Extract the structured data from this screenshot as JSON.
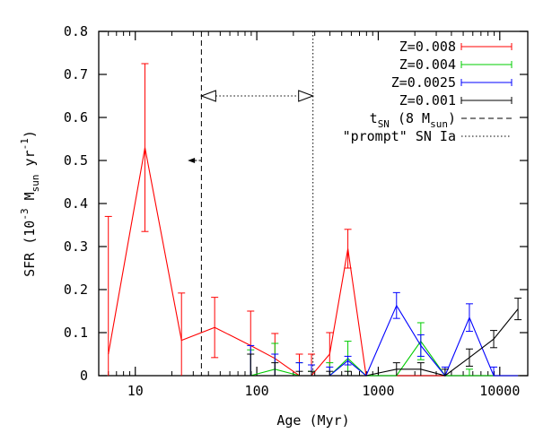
{
  "chart_data": {
    "type": "line",
    "xlabel": "Age (Myr)",
    "ylabel": "SFR (10^-3 M_sun yr^-1)",
    "xscale": "log",
    "xlim": [
      5,
      17000
    ],
    "ylim": [
      0,
      0.8
    ],
    "x_ticks": [
      10,
      100,
      1000,
      10000
    ],
    "y_ticks": [
      0,
      0.1,
      0.2,
      0.3,
      0.4,
      0.5,
      0.6,
      0.7,
      0.8
    ],
    "y_tick_labels": [
      "0",
      "0.1",
      "0.2",
      "0.3",
      "0.4",
      "0.5",
      "0.6",
      "0.7",
      "0.8"
    ],
    "legend_position": "top-right",
    "series": [
      {
        "name": "Z=0.008",
        "color": "#ff0000",
        "x": [
          6,
          12,
          24,
          45,
          89,
          141,
          224,
          282,
          398,
          562,
          794,
          1413,
          2239,
          3548,
          5623,
          8913,
          14125
        ],
        "y": [
          0.05,
          0.53,
          0.082,
          0.112,
          0.07,
          0.04,
          0,
          0,
          0.05,
          0.295,
          0,
          0,
          0,
          0,
          0,
          0,
          0
        ],
        "err": [
          0.32,
          0.195,
          0.11,
          0.07,
          0.08,
          0.058,
          0.05,
          0.05,
          0.05,
          0.045,
          0,
          0,
          0,
          0,
          0,
          0,
          0
        ]
      },
      {
        "name": "Z=0.004",
        "color": "#00cc00",
        "x": [
          89,
          141,
          224,
          282,
          398,
          562,
          794,
          1413,
          2239,
          3548,
          5623,
          8913,
          14125
        ],
        "y": [
          0,
          0.015,
          0,
          0,
          0,
          0.04,
          0,
          0,
          0.08,
          0,
          0,
          0,
          0
        ],
        "err": [
          0.06,
          0.06,
          0.03,
          0.01,
          0.03,
          0.04,
          0,
          0,
          0.043,
          0,
          0.015,
          0,
          0
        ]
      },
      {
        "name": "Z=0.0025",
        "color": "#0000ff",
        "x": [
          89,
          141,
          224,
          282,
          398,
          562,
          794,
          1413,
          2239,
          3548,
          5623,
          8913,
          14125
        ],
        "y": [
          0,
          0,
          0,
          0,
          0,
          0.035,
          0,
          0.163,
          0.07,
          0,
          0.135,
          0,
          0
        ],
        "err": [
          0.07,
          0.05,
          0.03,
          0.025,
          0.02,
          0.01,
          0,
          0.03,
          0.025,
          0.02,
          0.032,
          0.02,
          0
        ]
      },
      {
        "name": "Z=0.001",
        "color": "#000000",
        "x": [
          89,
          141,
          224,
          282,
          398,
          562,
          794,
          1413,
          2239,
          3548,
          5623,
          8913,
          14125
        ],
        "y": [
          0,
          0,
          0,
          0,
          0,
          0,
          0,
          0.015,
          0.015,
          0,
          0.042,
          0.085,
          0.155
        ],
        "err": [
          0.05,
          0.03,
          0.01,
          0.01,
          0.01,
          0.01,
          0,
          0.015,
          0.015,
          0.015,
          0.02,
          0.02,
          0.025
        ]
      }
    ],
    "vlines": [
      {
        "name": "t_SN (8 M_sun)",
        "x": 35,
        "style": "dashed"
      },
      {
        "name": "\"prompt\" SN Ia",
        "x": 290,
        "style": "dotted"
      }
    ],
    "annotations": [
      {
        "type": "arrow-left",
        "x_from": 35,
        "x_to": 27,
        "y": 0.5
      },
      {
        "type": "double-arrow",
        "x_from": 35,
        "x_to": 290,
        "y": 0.65
      }
    ]
  }
}
